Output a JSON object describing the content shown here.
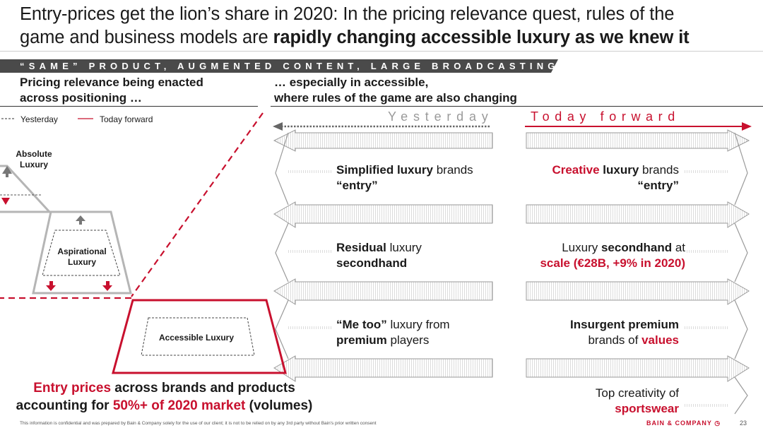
{
  "title": {
    "line1": "Entry-prices get the lion’s share in 2020: In the pricing relevance quest, rules of the",
    "line2_plain": "game and business models are ",
    "line2_bold": "rapidly changing accessible luxury as we knew it"
  },
  "banner": {
    "text": "“SAME” PRODUCT, AUGMENTED CONTENT, LARGE BROADCASTING",
    "color": "#4a4a4a"
  },
  "left_header": {
    "line1": "Pricing relevance being enacted",
    "line2": "across positioning …"
  },
  "right_header": {
    "line1": "… especially in accessible,",
    "line2": "where rules of the game are also changing"
  },
  "legend": {
    "yesterday": "Yesterday",
    "today": "Today forward"
  },
  "columns": {
    "yesterday": "Yesterday",
    "today": "Today forward"
  },
  "pyramid": {
    "absolute": {
      "line1": "Absolute",
      "line2": "Luxury"
    },
    "aspirational": {
      "line1": "Aspirational",
      "line2": "Luxury"
    },
    "accessible": "Accessible Luxury"
  },
  "rows": {
    "r1_left": {
      "bold": "Simplified luxury",
      "rest": " brands",
      "line2": "“entry”"
    },
    "r1_right": {
      "red": "Creative",
      "bold": " luxury",
      "rest": " brands",
      "line2": "“entry”"
    },
    "r2_left": {
      "bold": "Residual",
      "rest": " luxury",
      "line2": "secondhand"
    },
    "r2_right": {
      "plain": "Luxury ",
      "bold": "secondhand",
      "rest": " at",
      "line2": "scale (€28B, +9% in 2020)"
    },
    "r3_left": {
      "bold": "“Me too”",
      "rest": " luxury from",
      "line2_bold": "premium",
      "line2_rest": " players"
    },
    "r3_right": {
      "bold": "Insurgent premium",
      "line2_plain": "brands of ",
      "line2_red": "values"
    },
    "r4_right": {
      "line1": "Top creativity of",
      "line2": "sportswear"
    }
  },
  "bottom_note": {
    "red1": "Entry prices",
    "plain1": " across brands and products",
    "plain2": "accounting for ",
    "red2": "50%+ of 2020 market",
    "plain3": " (volumes)"
  },
  "footer": {
    "disclaimer": "This information is confidential and was prepared by Bain & Company solely for the use of our client; it is not to be relied on by any 3rd party without Bain's prior written consent",
    "brand": "BAIN & COMPANY",
    "page": "23"
  },
  "colors": {
    "accent": "#c8102e",
    "banner": "#4a4a4a",
    "gray": "#9a9a9a"
  }
}
